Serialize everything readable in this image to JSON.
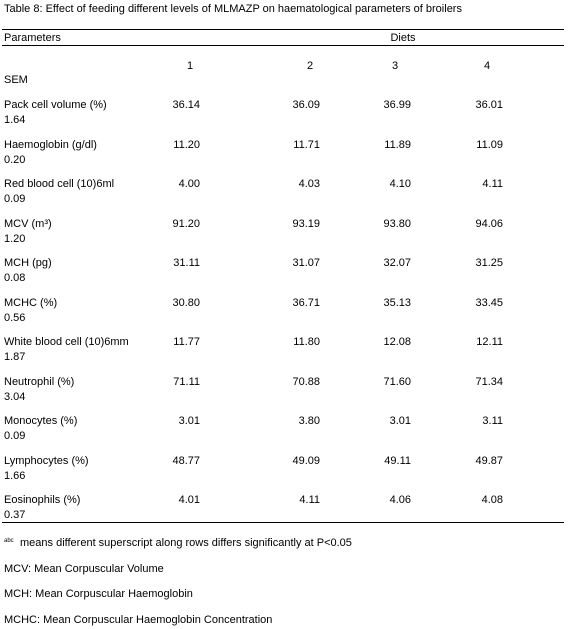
{
  "title": "Table 8: Effect of feeding different levels of MLMAZP on haematological parameters of broilers",
  "table": {
    "header": [
      "Parameters",
      "Diets"
    ],
    "columns": [
      "1",
      "2",
      "3",
      "4"
    ],
    "sem_label": "SEM",
    "rows": [
      {
        "parameter": "Pack cell volume (%)",
        "values": [
          "36.14",
          "36.09",
          "36.99",
          "36.01"
        ],
        "sem": "1.64"
      },
      {
        "parameter": "Haemoglobin (g/dl)",
        "values": [
          "11.20",
          "11.71",
          "11.89",
          "11.09"
        ],
        "sem": "0.20"
      },
      {
        "parameter": "Red blood cell (10)6ml",
        "values": [
          "4.00",
          "4.03",
          "4.10",
          "4.11"
        ],
        "sem": "0.09"
      },
      {
        "parameter": "MCV (m³)",
        "values": [
          "91.20",
          "93.19",
          "93.80",
          "94.06"
        ],
        "sem": "1.20"
      },
      {
        "parameter": "MCH (pg)",
        "values": [
          "31.11",
          "31.07",
          "32.07",
          "31.25"
        ],
        "sem": "0.08"
      },
      {
        "parameter": "MCHC (%)",
        "values": [
          "30.80",
          "36.71",
          "35.13",
          "33.45"
        ],
        "sem": "0.56"
      },
      {
        "parameter": "White blood cell (10)6mm",
        "values": [
          "11.77",
          "11.80",
          "12.08",
          "12.11"
        ],
        "sem": "1.87"
      },
      {
        "parameter": "Neutrophil (%)",
        "values": [
          "71.11",
          "70.88",
          "71.60",
          "71.34"
        ],
        "sem": "3.04"
      },
      {
        "parameter": "Monocytes (%)",
        "values": [
          "3.01",
          "3.80",
          "3.01",
          "3.11"
        ],
        "sem": "0.09"
      },
      {
        "parameter": "Lymphocytes (%)",
        "values": [
          "48.77",
          "49.09",
          "49.11",
          "49.87"
        ],
        "sem": "1.66"
      },
      {
        "parameter": "Eosinophils (%)",
        "values": [
          "4.01",
          "4.11",
          "4.06",
          "4.08"
        ],
        "sem": "0.37"
      }
    ]
  },
  "footnote_superscript": "abc",
  "footnotes": [
    "means different superscript along rows differs significantly at P<0.05",
    "MCV: Mean Corpuscular Volume",
    "MCH: Mean Corpuscular Haemoglobin",
    "MCHC: Mean Corpuscular Haemoglobin Concentration"
  ]
}
